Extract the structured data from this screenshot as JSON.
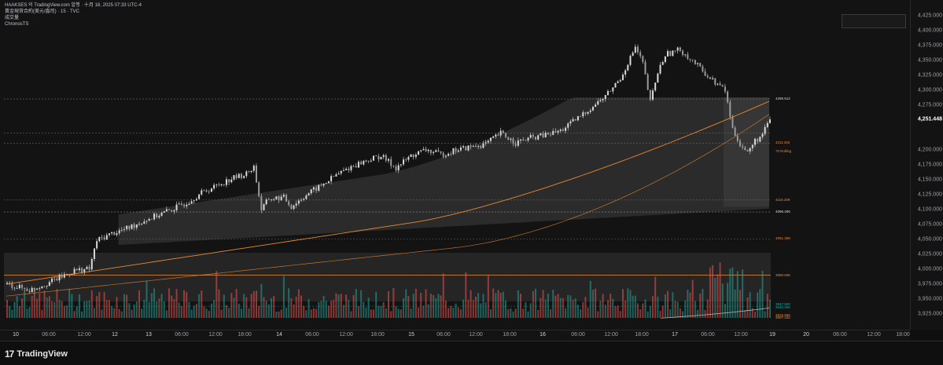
{
  "legend": {
    "line1": "HAAKSES 의 TradingView.com 발행 · 十月 18, 2025 07:33 UTC-4",
    "line2": "黃金現貨合約(美元/盎司) · 15 · TVC",
    "line3": "成交量",
    "line4": "ChronosTS"
  },
  "price_axis": {
    "ticks": [
      "4,425.000",
      "4,400.000",
      "4,375.000",
      "4,350.000",
      "4,325.000",
      "4,300.000",
      "4,275.000",
      "4,251.448",
      "4,200.000",
      "4,175.000",
      "4,150.000",
      "4,125.000",
      "4,100.000",
      "4,075.000",
      "4,050.000",
      "4,025.000",
      "4,000.000",
      "3,975.000",
      "3,950.000",
      "3,925.000"
    ],
    "current": "4,251.448"
  },
  "level_labels": {
    "l4285": "4285.512",
    "l4211": "4211.252",
    "l4198": "70 Rolling",
    "l4116": "4116.209",
    "l4096": "4096.406",
    "l4051": "4051.358",
    "l3990": "3990.668",
    "l3938a": "3947.500",
    "l3938b": "3940.000",
    "l3915": "3915.866",
    "l3910": "3907.442"
  },
  "time_axis": {
    "labels": [
      {
        "t": "10",
        "day": true
      },
      {
        "t": "06:00"
      },
      {
        "t": "12:00"
      },
      {
        "t": "12",
        "day": true
      },
      {
        "t": "13",
        "day": true
      },
      {
        "t": "06:00"
      },
      {
        "t": "12:00"
      },
      {
        "t": "18:00"
      },
      {
        "t": "14",
        "day": true
      },
      {
        "t": "06:00"
      },
      {
        "t": "12:00"
      },
      {
        "t": "18:00"
      },
      {
        "t": "15",
        "day": true
      },
      {
        "t": "06:00"
      },
      {
        "t": "12:00"
      },
      {
        "t": "18:00"
      },
      {
        "t": "16",
        "day": true
      },
      {
        "t": "06:00"
      },
      {
        "t": "12:00"
      },
      {
        "t": "18:00"
      },
      {
        "t": "17",
        "day": true
      },
      {
        "t": "06:00"
      },
      {
        "t": "12:00"
      },
      {
        "t": "19",
        "day": true
      },
      {
        "t": "20",
        "day": true
      },
      {
        "t": "06:00"
      },
      {
        "t": "12:00"
      },
      {
        "t": "18:00"
      }
    ]
  },
  "footer": {
    "brand": "TradingView",
    "logo_mark": "17"
  },
  "colors": {
    "background": "#131313",
    "candle": "#d9d9d9",
    "orange": "#e8892c",
    "volume_up": "#26a69a",
    "volume_down": "#ef5350",
    "band": "#3a3a3a"
  },
  "chart_data": {
    "type": "candlestick",
    "symbol": "黃金現貨合約(美元/盎司)",
    "interval": "15",
    "ylim": [
      3915,
      4430
    ],
    "price_path": [
      [
        0,
        3975
      ],
      [
        3,
        3965
      ],
      [
        6,
        3980
      ],
      [
        9,
        3998
      ],
      [
        11,
        4000
      ],
      [
        12,
        4048
      ],
      [
        14,
        4060
      ],
      [
        16,
        4068
      ],
      [
        18,
        4080
      ],
      [
        20,
        4090
      ],
      [
        22,
        4100
      ],
      [
        24,
        4112
      ],
      [
        26,
        4128
      ],
      [
        28,
        4140
      ],
      [
        30,
        4152
      ],
      [
        32,
        4160
      ],
      [
        33,
        4172
      ],
      [
        34,
        4100
      ],
      [
        35,
        4118
      ],
      [
        37,
        4120
      ],
      [
        38,
        4105
      ],
      [
        40,
        4125
      ],
      [
        42,
        4140
      ],
      [
        44,
        4158
      ],
      [
        46,
        4172
      ],
      [
        48,
        4182
      ],
      [
        50,
        4190
      ],
      [
        52,
        4170
      ],
      [
        54,
        4190
      ],
      [
        56,
        4200
      ],
      [
        58,
        4192
      ],
      [
        60,
        4200
      ],
      [
        62,
        4205
      ],
      [
        64,
        4210
      ],
      [
        66,
        4228
      ],
      [
        68,
        4212
      ],
      [
        70,
        4220
      ],
      [
        72,
        4225
      ],
      [
        74,
        4232
      ],
      [
        76,
        4250
      ],
      [
        78,
        4270
      ],
      [
        80,
        4290
      ],
      [
        82,
        4320
      ],
      [
        84,
        4372
      ],
      [
        85,
        4345
      ],
      [
        86,
        4280
      ],
      [
        87,
        4330
      ],
      [
        88,
        4360
      ],
      [
        90,
        4368
      ],
      [
        92,
        4345
      ],
      [
        94,
        4320
      ],
      [
        96,
        4300
      ],
      [
        97,
        4235
      ],
      [
        98,
        4210
      ],
      [
        99,
        4195
      ],
      [
        100,
        4215
      ],
      [
        101,
        4225
      ],
      [
        102,
        4251
      ]
    ]
  }
}
